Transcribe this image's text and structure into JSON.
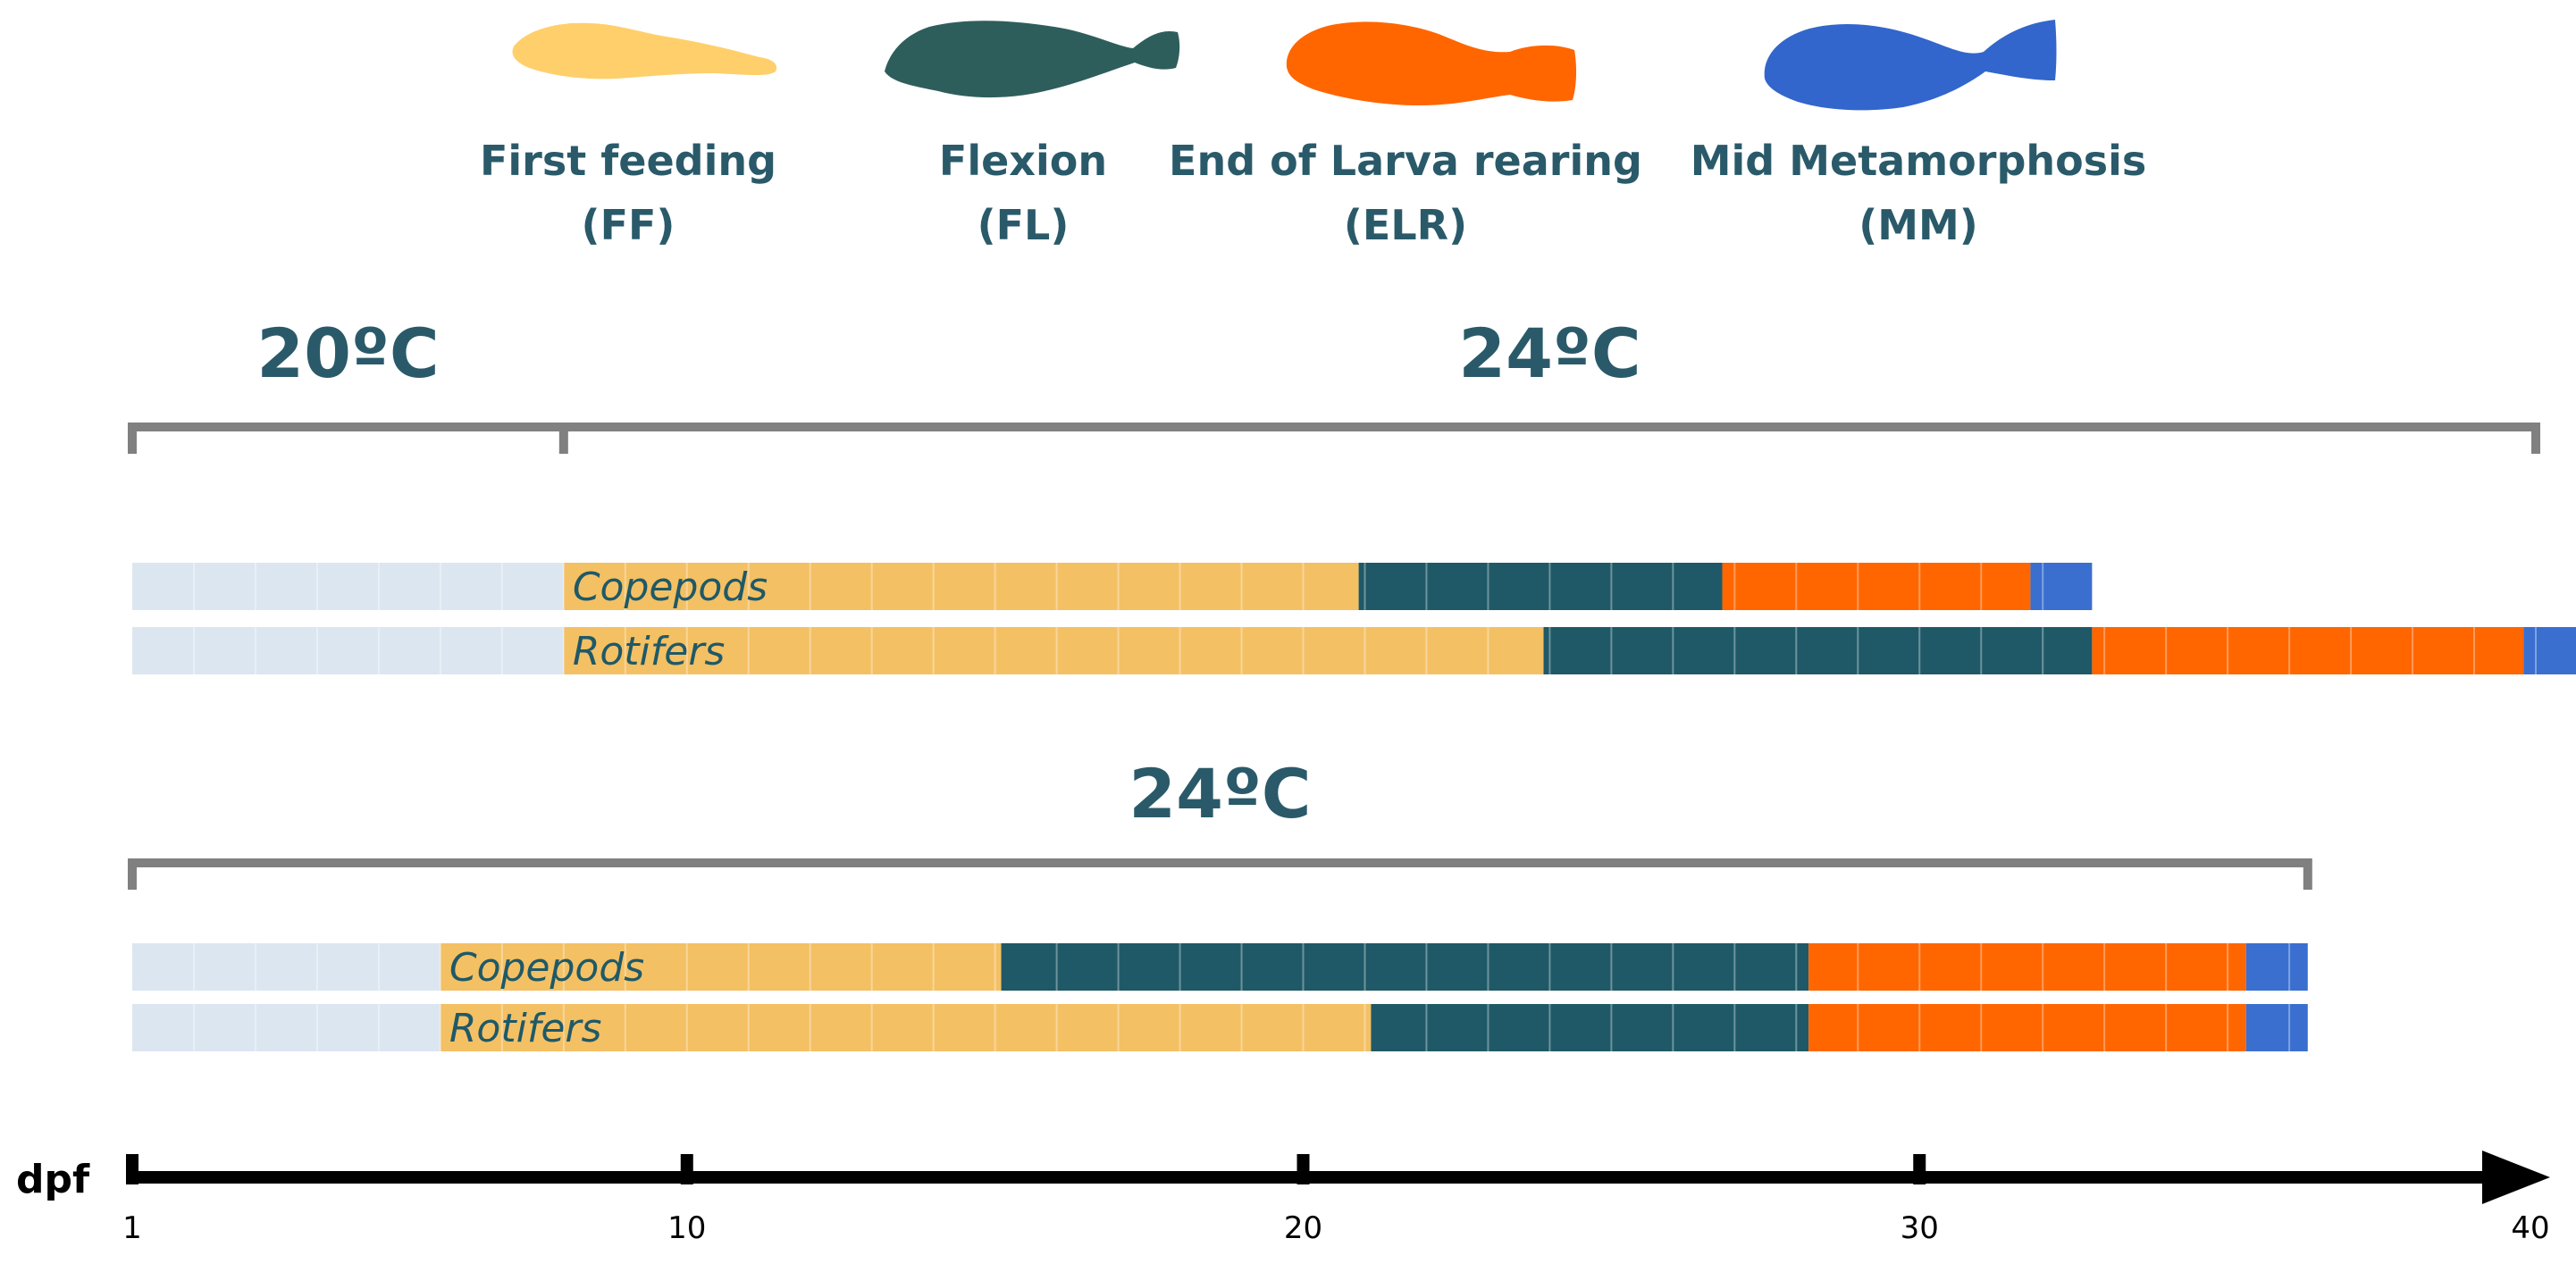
{
  "legend": [
    {
      "name": "First feeding",
      "abbr": "(FF)",
      "color": "#FFCF6B"
    },
    {
      "name": "Flexion",
      "abbr": "(FL)",
      "color": "#2E5E5C"
    },
    {
      "name": "End of Larva rearing",
      "abbr": "(ELR)",
      "color": "#FF6600"
    },
    {
      "name": "Mid Metamorphosis",
      "abbr": "(MM)",
      "color": "#3366CC"
    }
  ],
  "colors": {
    "text": "#2A5A6A",
    "bracket": "#808080",
    "pre_feeding": "#DCE6F1",
    "ff": "#F4C064",
    "fl": "#1F5967",
    "elr": "#FF6600",
    "mm": "#3A6FD0",
    "axis": "#000000"
  },
  "chart_data": {
    "type": "timeline",
    "axis": {
      "label": "dpf",
      "min": 1,
      "max": 40,
      "ticks": [
        1,
        10,
        20,
        30,
        40
      ]
    },
    "groups": [
      {
        "temperature_periods": [
          {
            "label": "20ºC",
            "start": 1,
            "end": 8
          },
          {
            "label": "24ºC",
            "start": 8,
            "end": 40
          }
        ],
        "rows": [
          {
            "label": "Copepods",
            "segments": [
              {
                "stage": "pre",
                "start": 1,
                "end": 8
              },
              {
                "stage": "FF",
                "start": 8,
                "end": 20.9
              },
              {
                "stage": "FL",
                "start": 20.9,
                "end": 26.8
              },
              {
                "stage": "ELR",
                "start": 26.8,
                "end": 31.8
              },
              {
                "stage": "MM",
                "start": 31.8,
                "end": 32.8
              }
            ]
          },
          {
            "label": "Rotifers",
            "segments": [
              {
                "stage": "pre",
                "start": 1,
                "end": 8
              },
              {
                "stage": "FF",
                "start": 8,
                "end": 23.9
              },
              {
                "stage": "FL",
                "start": 23.9,
                "end": 32.8
              },
              {
                "stage": "ELR",
                "start": 32.8,
                "end": 39.8
              },
              {
                "stage": "MM",
                "start": 39.8,
                "end": 40.8
              }
            ]
          }
        ]
      },
      {
        "temperature_periods": [
          {
            "label": "24ºC",
            "start": 1,
            "end": 36.3
          }
        ],
        "rows": [
          {
            "label": "Copepods",
            "segments": [
              {
                "stage": "pre",
                "start": 1,
                "end": 6
              },
              {
                "stage": "FF",
                "start": 6,
                "end": 15.1
              },
              {
                "stage": "FL",
                "start": 15.1,
                "end": 28.2
              },
              {
                "stage": "ELR",
                "start": 28.2,
                "end": 35.3
              },
              {
                "stage": "MM",
                "start": 35.3,
                "end": 36.3
              }
            ]
          },
          {
            "label": "Rotifers",
            "segments": [
              {
                "stage": "pre",
                "start": 1,
                "end": 6
              },
              {
                "stage": "FF",
                "start": 6,
                "end": 21.1
              },
              {
                "stage": "FL",
                "start": 21.1,
                "end": 28.2
              },
              {
                "stage": "ELR",
                "start": 28.2,
                "end": 35.3
              },
              {
                "stage": "MM",
                "start": 35.3,
                "end": 36.3
              }
            ]
          }
        ]
      }
    ]
  }
}
